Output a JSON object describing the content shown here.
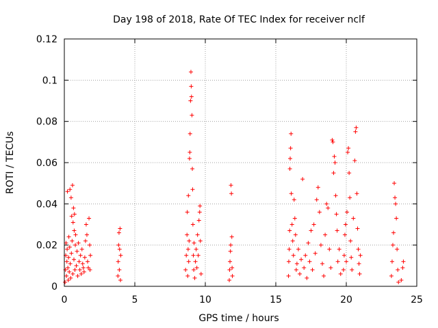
{
  "chart_data": {
    "type": "scatter",
    "title": "Day 198 of 2018, Rate Of TEC Index for receiver nclf",
    "xlabel": "GPS time / hours",
    "ylabel": "ROTI / TECUs",
    "xlim": [
      0,
      25
    ],
    "ylim": [
      0,
      0.12
    ],
    "x_ticks": [
      0,
      5,
      10,
      15,
      20,
      25
    ],
    "x_tick_labels": [
      "0",
      "5",
      "10",
      "15",
      "20",
      "25"
    ],
    "y_ticks": [
      0,
      0.02,
      0.04,
      0.06,
      0.08,
      0.1,
      0.12
    ],
    "y_tick_labels": [
      "0",
      "0.02",
      "0.04",
      "0.06",
      "0.08",
      "0.1",
      "0.12"
    ],
    "grid": true,
    "marker": "+",
    "marker_color": "#ff0000",
    "grid_color": "#a0a0a0",
    "series": [
      {
        "name": "ROTI",
        "points": [
          [
            0.05,
            0.002
          ],
          [
            0.08,
            0.008
          ],
          [
            0.1,
            0.015
          ],
          [
            0.12,
            0.021
          ],
          [
            0.15,
            0.005
          ],
          [
            0.18,
            0.012
          ],
          [
            0.2,
            0.018
          ],
          [
            0.22,
            0.046
          ],
          [
            0.25,
            0.009
          ],
          [
            0.28,
            0.003
          ],
          [
            0.3,
            0.014
          ],
          [
            0.32,
            0.024
          ],
          [
            0.35,
            0.007
          ],
          [
            0.38,
            0.019
          ],
          [
            0.4,
            0.047
          ],
          [
            0.42,
            0.011
          ],
          [
            0.45,
            0.004
          ],
          [
            0.48,
            0.043
          ],
          [
            0.5,
            0.016
          ],
          [
            0.52,
            0.034
          ],
          [
            0.55,
            0.022
          ],
          [
            0.58,
            0.049
          ],
          [
            0.6,
            0.006
          ],
          [
            0.62,
            0.031
          ],
          [
            0.65,
            0.038
          ],
          [
            0.68,
            0.013
          ],
          [
            0.7,
            0.027
          ],
          [
            0.72,
            0.035
          ],
          [
            0.75,
            0.008
          ],
          [
            0.78,
            0.02
          ],
          [
            0.8,
            0.025
          ],
          [
            0.85,
            0.01
          ],
          [
            0.9,
            0.017
          ],
          [
            0.95,
            0.005
          ],
          [
            1.0,
            0.021
          ],
          [
            1.05,
            0.012
          ],
          [
            1.1,
            0.008
          ],
          [
            1.15,
            0.015
          ],
          [
            1.2,
            0.006
          ],
          [
            1.25,
            0.018
          ],
          [
            1.3,
            0.011
          ],
          [
            1.35,
            0.009
          ],
          [
            1.4,
            0.007
          ],
          [
            1.45,
            0.014
          ],
          [
            1.5,
            0.022
          ],
          [
            1.55,
            0.03
          ],
          [
            1.6,
            0.025
          ],
          [
            1.65,
            0.012
          ],
          [
            1.7,
            0.009
          ],
          [
            1.75,
            0.033
          ],
          [
            1.8,
            0.02
          ],
          [
            1.82,
            0.008
          ],
          [
            1.85,
            0.015
          ],
          [
            3.8,
            0.005
          ],
          [
            3.82,
            0.012
          ],
          [
            3.85,
            0.02
          ],
          [
            3.88,
            0.026
          ],
          [
            3.9,
            0.008
          ],
          [
            3.92,
            0.018
          ],
          [
            3.95,
            0.028
          ],
          [
            3.98,
            0.003
          ],
          [
            4.0,
            0.015
          ],
          [
            8.6,
            0.008
          ],
          [
            8.65,
            0.015
          ],
          [
            8.7,
            0.025
          ],
          [
            8.72,
            0.036
          ],
          [
            8.75,
            0.005
          ],
          [
            8.78,
            0.018
          ],
          [
            8.8,
            0.044
          ],
          [
            8.82,
            0.012
          ],
          [
            8.85,
            0.022
          ],
          [
            8.88,
            0.062
          ],
          [
            8.9,
            0.065
          ],
          [
            8.92,
            0.074
          ],
          [
            8.95,
            0.09
          ],
          [
            8.98,
            0.104
          ],
          [
            9.0,
            0.097
          ],
          [
            9.02,
            0.092
          ],
          [
            9.05,
            0.083
          ],
          [
            9.08,
            0.057
          ],
          [
            9.1,
            0.047
          ],
          [
            9.12,
            0.03
          ],
          [
            9.15,
            0.015
          ],
          [
            9.18,
            0.008
          ],
          [
            9.2,
            0.021
          ],
          [
            9.25,
            0.004
          ],
          [
            9.3,
            0.012
          ],
          [
            9.35,
            0.018
          ],
          [
            9.4,
            0.009
          ],
          [
            9.45,
            0.025
          ],
          [
            9.5,
            0.015
          ],
          [
            9.55,
            0.032
          ],
          [
            9.6,
            0.036
          ],
          [
            9.62,
            0.039
          ],
          [
            9.65,
            0.022
          ],
          [
            9.7,
            0.006
          ],
          [
            11.7,
            0.003
          ],
          [
            11.72,
            0.008
          ],
          [
            11.75,
            0.012
          ],
          [
            11.78,
            0.017
          ],
          [
            11.8,
            0.02
          ],
          [
            11.82,
            0.049
          ],
          [
            11.85,
            0.045
          ],
          [
            11.88,
            0.024
          ],
          [
            11.9,
            0.009
          ],
          [
            11.92,
            0.005
          ],
          [
            15.9,
            0.005
          ],
          [
            15.92,
            0.012
          ],
          [
            15.95,
            0.018
          ],
          [
            15.98,
            0.027
          ],
          [
            16.0,
            0.057
          ],
          [
            16.02,
            0.062
          ],
          [
            16.05,
            0.067
          ],
          [
            16.08,
            0.074
          ],
          [
            16.1,
            0.045
          ],
          [
            16.15,
            0.03
          ],
          [
            16.2,
            0.022
          ],
          [
            16.25,
            0.015
          ],
          [
            16.3,
            0.042
          ],
          [
            16.35,
            0.033
          ],
          [
            16.4,
            0.025
          ],
          [
            16.45,
            0.008
          ],
          [
            16.5,
            0.011
          ],
          [
            16.6,
            0.018
          ],
          [
            16.7,
            0.006
          ],
          [
            16.8,
            0.013
          ],
          [
            16.9,
            0.052
          ],
          [
            17.0,
            0.009
          ],
          [
            17.1,
            0.015
          ],
          [
            17.2,
            0.004
          ],
          [
            17.3,
            0.021
          ],
          [
            17.4,
            0.012
          ],
          [
            17.5,
            0.027
          ],
          [
            17.6,
            0.008
          ],
          [
            17.7,
            0.03
          ],
          [
            17.8,
            0.016
          ],
          [
            17.9,
            0.042
          ],
          [
            18.0,
            0.048
          ],
          [
            18.1,
            0.036
          ],
          [
            18.2,
            0.02
          ],
          [
            18.3,
            0.011
          ],
          [
            18.4,
            0.005
          ],
          [
            18.5,
            0.025
          ],
          [
            18.6,
            0.04
          ],
          [
            18.7,
            0.038
          ],
          [
            18.8,
            0.018
          ],
          [
            18.9,
            0.009
          ],
          [
            19.0,
            0.071
          ],
          [
            19.05,
            0.07
          ],
          [
            19.1,
            0.055
          ],
          [
            19.15,
            0.063
          ],
          [
            19.2,
            0.06
          ],
          [
            19.25,
            0.044
          ],
          [
            19.3,
            0.035
          ],
          [
            19.35,
            0.027
          ],
          [
            19.4,
            0.012
          ],
          [
            19.5,
            0.018
          ],
          [
            19.6,
            0.006
          ],
          [
            19.8,
            0.008
          ],
          [
            19.85,
            0.015
          ],
          [
            19.9,
            0.025
          ],
          [
            19.95,
            0.03
          ],
          [
            20.0,
            0.012
          ],
          [
            20.05,
            0.036
          ],
          [
            20.1,
            0.065
          ],
          [
            20.15,
            0.067
          ],
          [
            20.2,
            0.055
          ],
          [
            20.25,
            0.043
          ],
          [
            20.3,
            0.022
          ],
          [
            20.35,
            0.014
          ],
          [
            20.4,
            0.008
          ],
          [
            20.5,
            0.033
          ],
          [
            20.6,
            0.061
          ],
          [
            20.65,
            0.075
          ],
          [
            20.7,
            0.077
          ],
          [
            20.75,
            0.045
          ],
          [
            20.8,
            0.028
          ],
          [
            20.85,
            0.018
          ],
          [
            20.9,
            0.011
          ],
          [
            20.95,
            0.006
          ],
          [
            21.0,
            0.015
          ],
          [
            23.2,
            0.005
          ],
          [
            23.25,
            0.012
          ],
          [
            23.3,
            0.02
          ],
          [
            23.35,
            0.026
          ],
          [
            23.4,
            0.05
          ],
          [
            23.45,
            0.043
          ],
          [
            23.5,
            0.04
          ],
          [
            23.55,
            0.033
          ],
          [
            23.6,
            0.018
          ],
          [
            23.65,
            0.008
          ],
          [
            23.7,
            0.002
          ],
          [
            23.9,
            0.003
          ],
          [
            24.0,
            0.009
          ],
          [
            24.05,
            0.012
          ]
        ]
      }
    ]
  }
}
